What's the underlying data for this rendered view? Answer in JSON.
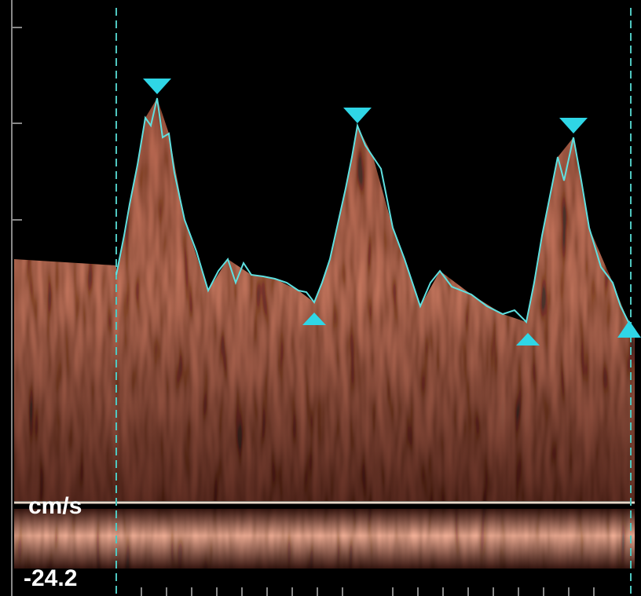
{
  "labels": {
    "unit": "cm/s",
    "scale_value": "-24.2"
  }
}
